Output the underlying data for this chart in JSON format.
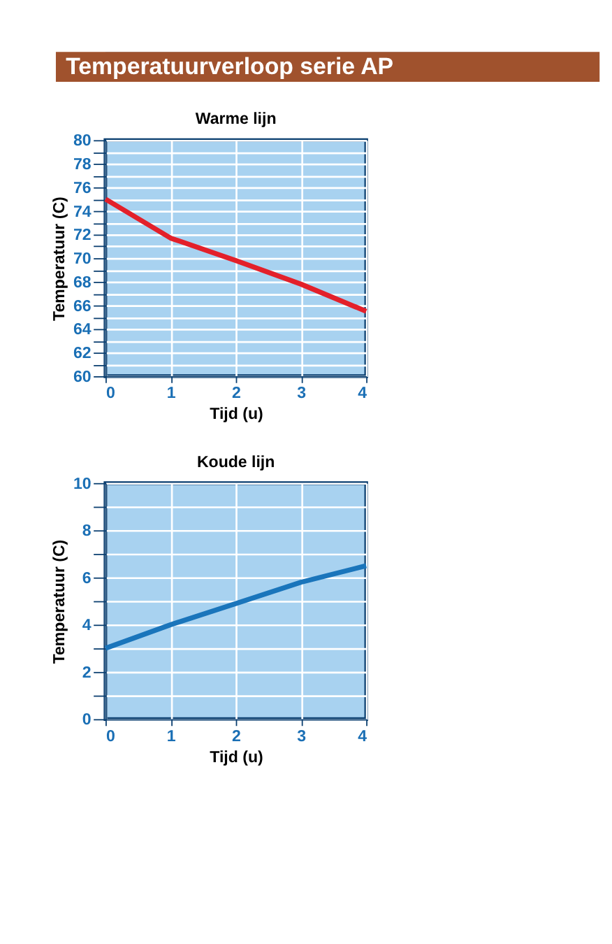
{
  "chart_data": [
    {
      "type": "line",
      "title": "Temperatuurverloop serie AP",
      "subtitle": "Warme lijn",
      "xlabel": "Tijd (u)",
      "ylabel": "Temperatuur (C)",
      "x": [
        0,
        1,
        2,
        3,
        4
      ],
      "series": [
        {
          "color": "#e3202a",
          "values": [
            75,
            71.7,
            69.8,
            67.8,
            65.5
          ]
        }
      ],
      "xlim": [
        0,
        4
      ],
      "xticks": [
        0,
        1,
        2,
        3,
        4
      ],
      "ylim": [
        60,
        80
      ],
      "yticks": [
        60,
        {
          "value": 61,
          "label": null
        },
        62,
        {
          "value": 63,
          "label": null
        },
        64,
        {
          "value": 65,
          "label": null
        },
        66,
        {
          "value": 67,
          "label": null
        },
        68,
        {
          "value": 69,
          "label": null
        },
        70,
        {
          "value": 71,
          "label": null
        },
        72,
        {
          "value": 73,
          "label": null
        },
        74,
        {
          "value": 75,
          "label": null
        },
        76,
        {
          "value": 77,
          "label": null
        },
        78,
        {
          "value": 79,
          "label": null
        },
        80
      ],
      "grid": true,
      "marker": "none",
      "line_style": "solid"
    },
    {
      "type": "line",
      "subtitle": "Koude lijn",
      "xlabel": "Tijd (u)",
      "ylabel": "Temperatuur (C)",
      "x": [
        0,
        1,
        2,
        3,
        4
      ],
      "series": [
        {
          "color": "#1a75bb",
          "values": [
            3,
            4,
            4.9,
            5.8,
            6.5
          ]
        }
      ],
      "xlim": [
        0,
        4
      ],
      "xticks": [
        0,
        1,
        2,
        3,
        4
      ],
      "ylim": [
        0,
        10
      ],
      "yticks": [
        0,
        {
          "value": 1,
          "label": null
        },
        2,
        {
          "value": 3,
          "label": null
        },
        4,
        {
          "value": 5,
          "label": null
        },
        6,
        {
          "value": 7,
          "label": null
        },
        8,
        {
          "value": 9,
          "label": null
        },
        10
      ],
      "grid": true,
      "marker": "none",
      "line_style": "solid"
    }
  ]
}
